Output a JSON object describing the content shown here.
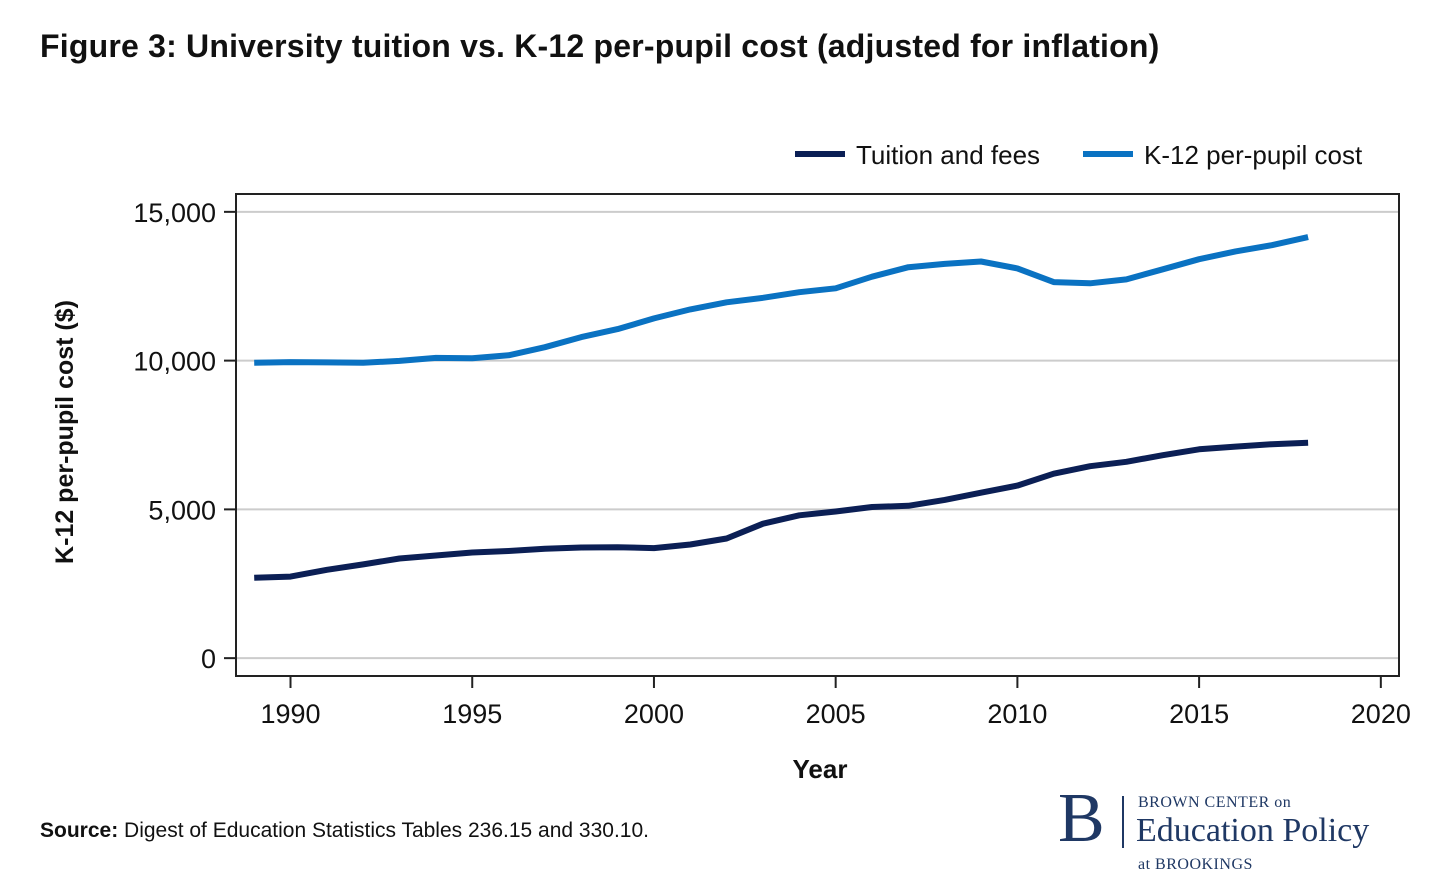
{
  "title": "Figure 3: University tuition vs. K-12 per-pupil cost (adjusted for inflation)",
  "source_label": "Source:",
  "source_text": " Digest of Education Statistics Tables 236.15 and 330.10.",
  "brand": {
    "letter": "B",
    "top": "BROWN CENTER on",
    "main": "Education Policy",
    "bottom": "at BROOKINGS",
    "color": "#1f3864"
  },
  "chart_data": {
    "type": "line",
    "title": "Figure 3: University tuition vs. K-12 per-pupil cost (adjusted for inflation)",
    "xlabel": "Year",
    "ylabel": "K-12 per-pupil cost ($)",
    "xlim": [
      1988.5,
      2020.5
    ],
    "ylim": [
      -600,
      15600
    ],
    "xticks": [
      1990,
      1995,
      2000,
      2005,
      2010,
      2015,
      2020
    ],
    "xtick_labels": [
      "1990",
      "1995",
      "2000",
      "2005",
      "2010",
      "2015",
      "2020"
    ],
    "yticks": [
      0,
      5000,
      10000,
      15000
    ],
    "ytick_labels": [
      "0",
      "5,000",
      "10,000",
      "15,000"
    ],
    "grid": true,
    "legend_position": "top-right",
    "x": [
      1989,
      1990,
      1991,
      1992,
      1993,
      1994,
      1995,
      1996,
      1997,
      1998,
      1999,
      2000,
      2001,
      2002,
      2003,
      2004,
      2005,
      2006,
      2007,
      2008,
      2009,
      2010,
      2011,
      2012,
      2013,
      2014,
      2015,
      2016,
      2017,
      2018
    ],
    "series": [
      {
        "name": "Tuition and fees",
        "color": "#0b1f55",
        "values": [
          2700,
          2740,
          2970,
          3150,
          3350,
          3450,
          3550,
          3600,
          3680,
          3720,
          3730,
          3700,
          3820,
          4020,
          4520,
          4800,
          4930,
          5080,
          5120,
          5320,
          5560,
          5800,
          6200,
          6450,
          6600,
          6820,
          7020,
          7110,
          7190,
          7240
        ]
      },
      {
        "name": "K-12 per-pupil cost",
        "color": "#0a72c2",
        "values": [
          9930,
          9950,
          9940,
          9930,
          9990,
          10090,
          10080,
          10180,
          10450,
          10790,
          11060,
          11420,
          11720,
          11960,
          12110,
          12300,
          12430,
          12820,
          13140,
          13250,
          13330,
          13100,
          12640,
          12600,
          12730,
          13070,
          13410,
          13670,
          13880,
          14150
        ]
      }
    ]
  }
}
